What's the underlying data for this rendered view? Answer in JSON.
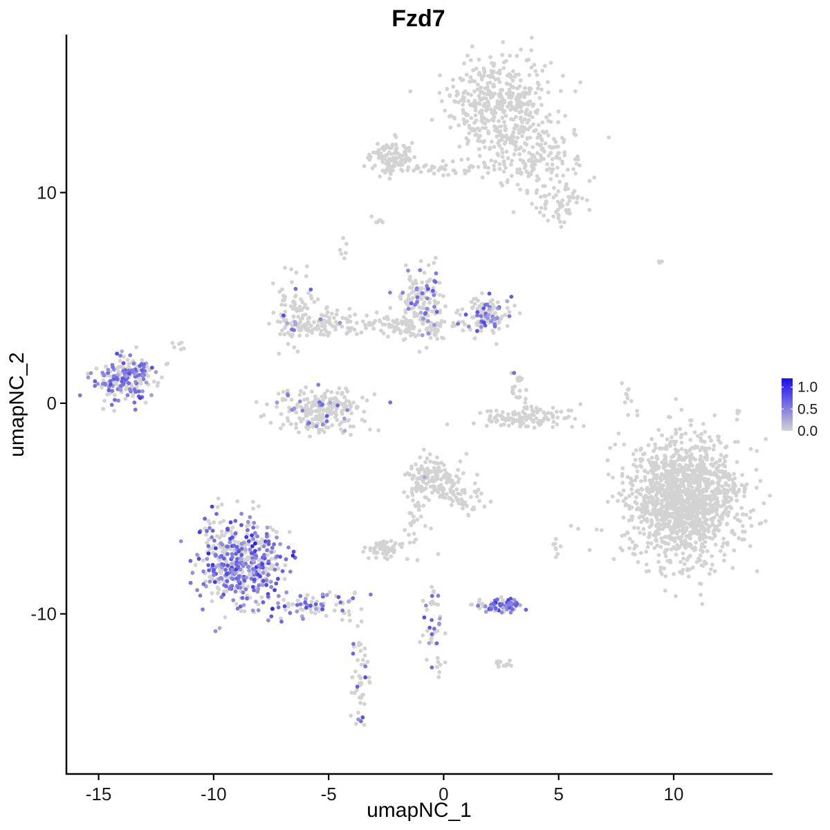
{
  "chart_data": {
    "type": "scatter",
    "title": "Fzd7",
    "xlabel": "umapNC_1",
    "ylabel": "umapNC_2",
    "xlim": [
      -16.4,
      14.3
    ],
    "ylim": [
      -17.6,
      17.5
    ],
    "x_ticks": [
      -15,
      -10,
      -5,
      0,
      5,
      10
    ],
    "x_tick_labels": [
      "-15",
      "-10",
      "-5",
      "0",
      "5",
      "10"
    ],
    "y_ticks": [
      -10,
      0,
      10
    ],
    "y_tick_labels": [
      "-10",
      "0",
      "10"
    ],
    "grid": false,
    "legend": {
      "position": "right",
      "type": "colorbar",
      "range": [
        0,
        1.2
      ],
      "ticks": [
        0.0,
        0.5,
        1.0
      ],
      "tick_labels": [
        "0.0",
        "0.5",
        "1.0"
      ],
      "low_color": "#d3d3d3",
      "high_color": "#1a0df0"
    },
    "clusters": [
      {
        "cx": 2.4,
        "cy": 14.3,
        "sx": 1.1,
        "sy": 1.2,
        "n": 420,
        "expr_frac": 0.0,
        "expr_mean": 0.0
      },
      {
        "cx": 4.0,
        "cy": 11.8,
        "sx": 1.1,
        "sy": 0.8,
        "n": 160,
        "expr_frac": 0.0,
        "expr_mean": 0.0
      },
      {
        "cx": 5.0,
        "cy": 9.6,
        "sx": 0.6,
        "sy": 0.6,
        "n": 70,
        "expr_frac": 0.0,
        "expr_mean": 0.0
      },
      {
        "cx": -2.3,
        "cy": 11.6,
        "sx": 0.5,
        "sy": 0.4,
        "n": 110,
        "expr_frac": 0.0,
        "expr_mean": 0.0
      },
      {
        "cx": -0.3,
        "cy": 11.1,
        "sx": 1.0,
        "sy": 0.15,
        "n": 40,
        "expr_frac": 0.0,
        "expr_mean": 0.0
      },
      {
        "cx": 10.5,
        "cy": -4.5,
        "sx": 1.2,
        "sy": 1.5,
        "n": 1400,
        "expr_frac": 0.0,
        "expr_mean": 0.0
      },
      {
        "cx": -13.8,
        "cy": 1.2,
        "sx": 0.6,
        "sy": 0.5,
        "n": 200,
        "expr_frac": 0.45,
        "expr_mean": 0.55
      },
      {
        "cx": -8.8,
        "cy": -7.6,
        "sx": 0.9,
        "sy": 1.1,
        "n": 500,
        "expr_frac": 0.5,
        "expr_mean": 0.6
      },
      {
        "cx": -5.5,
        "cy": -9.6,
        "sx": 1.0,
        "sy": 0.35,
        "n": 80,
        "expr_frac": 0.4,
        "expr_mean": 0.6
      },
      {
        "cx": -6.5,
        "cy": 4.3,
        "sx": 0.5,
        "sy": 0.8,
        "n": 110,
        "expr_frac": 0.08,
        "expr_mean": 0.5
      },
      {
        "cx": -5.0,
        "cy": 3.8,
        "sx": 0.6,
        "sy": 0.3,
        "n": 60,
        "expr_frac": 0.03,
        "expr_mean": 0.5
      },
      {
        "cx": -5.3,
        "cy": -0.3,
        "sx": 1.0,
        "sy": 0.5,
        "n": 230,
        "expr_frac": 0.07,
        "expr_mean": 0.5
      },
      {
        "cx": -1.0,
        "cy": 4.8,
        "sx": 0.5,
        "sy": 0.8,
        "n": 150,
        "expr_frac": 0.18,
        "expr_mean": 0.5
      },
      {
        "cx": -1.8,
        "cy": 3.6,
        "sx": 1.3,
        "sy": 0.3,
        "n": 110,
        "expr_frac": 0.0,
        "expr_mean": 0.0
      },
      {
        "cx": 1.9,
        "cy": 4.2,
        "sx": 0.55,
        "sy": 0.45,
        "n": 120,
        "expr_frac": 0.35,
        "expr_mean": 0.55
      },
      {
        "cx": 3.6,
        "cy": -0.7,
        "sx": 1.0,
        "sy": 0.25,
        "n": 120,
        "expr_frac": 0.0,
        "expr_mean": 0.0
      },
      {
        "cx": 3.2,
        "cy": 0.8,
        "sx": 0.25,
        "sy": 0.45,
        "n": 20,
        "expr_frac": 0.05,
        "expr_mean": 0.5
      },
      {
        "cx": -0.4,
        "cy": -3.6,
        "sx": 0.6,
        "sy": 0.5,
        "n": 160,
        "expr_frac": 0.01,
        "expr_mean": 0.5
      },
      {
        "cx": 0.9,
        "cy": -4.6,
        "sx": 0.5,
        "sy": 0.4,
        "n": 30,
        "expr_frac": 0.0,
        "expr_mean": 0.0
      },
      {
        "cx": -1.3,
        "cy": -5.5,
        "sx": 0.3,
        "sy": 0.8,
        "n": 30,
        "expr_frac": 0.0,
        "expr_mean": 0.0
      },
      {
        "cx": -2.6,
        "cy": -6.9,
        "sx": 0.4,
        "sy": 0.2,
        "n": 60,
        "expr_frac": 0.0,
        "expr_mean": 0.0
      },
      {
        "cx": 2.5,
        "cy": -9.6,
        "sx": 0.5,
        "sy": 0.18,
        "n": 80,
        "expr_frac": 0.6,
        "expr_mean": 0.55
      },
      {
        "cx": -0.5,
        "cy": -10.6,
        "sx": 0.25,
        "sy": 1.2,
        "n": 45,
        "expr_frac": 0.3,
        "expr_mean": 0.6
      },
      {
        "cx": -3.6,
        "cy": -13.0,
        "sx": 0.2,
        "sy": 1.4,
        "n": 45,
        "expr_frac": 0.2,
        "expr_mean": 0.65
      },
      {
        "cx": 2.5,
        "cy": -12.4,
        "sx": 0.25,
        "sy": 0.12,
        "n": 12,
        "expr_frac": 0.0,
        "expr_mean": 0.0
      },
      {
        "cx": 4.9,
        "cy": -7.0,
        "sx": 0.12,
        "sy": 0.4,
        "n": 8,
        "expr_frac": 0.0,
        "expr_mean": 0.0
      },
      {
        "cx": 8.0,
        "cy": 0.2,
        "sx": 0.15,
        "sy": 0.6,
        "n": 10,
        "expr_frac": 0.0,
        "expr_mean": 0.0
      },
      {
        "cx": -11.6,
        "cy": 2.7,
        "sx": 0.15,
        "sy": 0.15,
        "n": 6,
        "expr_frac": 0.0,
        "expr_mean": 0.0
      },
      {
        "cx": -2.7,
        "cy": 8.7,
        "sx": 0.2,
        "sy": 0.12,
        "n": 6,
        "expr_frac": 0.0,
        "expr_mean": 0.0
      },
      {
        "cx": -4.4,
        "cy": 7.3,
        "sx": 0.1,
        "sy": 0.3,
        "n": 6,
        "expr_frac": 0.0,
        "expr_mean": 0.0
      },
      {
        "cx": 9.4,
        "cy": 6.7,
        "sx": 0.15,
        "sy": 0.06,
        "n": 3,
        "expr_frac": 0.0,
        "expr_mean": 0.0
      }
    ]
  }
}
